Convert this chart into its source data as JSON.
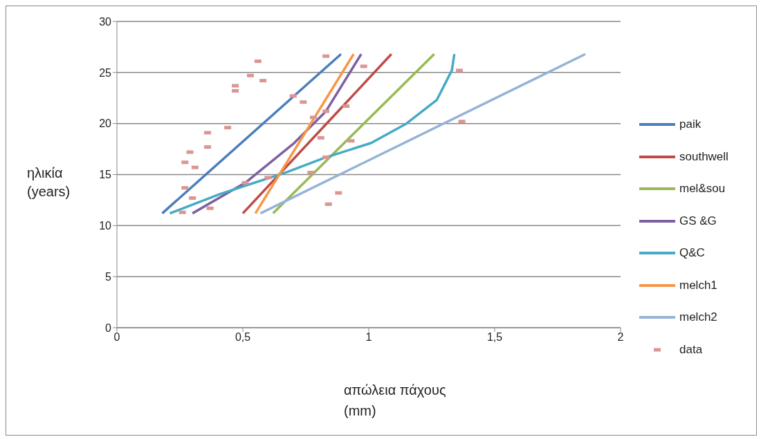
{
  "chart_data": {
    "type": "line",
    "xlabel": "απώλεια πάχους\n(mm)",
    "ylabel": "ηλικία\n(years)",
    "xlim": [
      0,
      2
    ],
    "xticks": [
      0,
      {
        "value": 0.5,
        "label": "0,5"
      },
      1,
      {
        "value": 1.5,
        "label": "1,5"
      },
      2
    ],
    "ylim": [
      0,
      30
    ],
    "yticks": [
      0,
      5,
      10,
      15,
      20,
      25,
      30
    ],
    "grid": "y",
    "legend": "right",
    "marker": "none",
    "line_style": "solid",
    "series": [
      {
        "name": "paik",
        "color": "#4a7ebb",
        "x": [
          0.18,
          0.89
        ],
        "values": [
          11.2,
          26.8
        ]
      },
      {
        "name": "southwell",
        "color": "#be4b48",
        "x": [
          0.5,
          1.09
        ],
        "values": [
          11.2,
          26.8
        ]
      },
      {
        "name": "mel&sou",
        "color": "#98b954",
        "x": [
          0.62,
          1.26
        ],
        "values": [
          11.2,
          26.8
        ]
      },
      {
        "name": "GS &G",
        "color": "#7d60a0",
        "x": [
          0.3,
          0.51,
          0.7,
          0.83,
          0.97
        ],
        "values": [
          11.2,
          14.2,
          18,
          21.2,
          26.8
        ]
      },
      {
        "name": "Q&C",
        "color": "#46aac5",
        "x": [
          0.21,
          0.41,
          0.67,
          0.82,
          1.01,
          1.15,
          1.27,
          1.33,
          1.34
        ],
        "values": [
          11.2,
          13.1,
          15.2,
          16.6,
          18.1,
          20,
          22.3,
          25.2,
          26.8
        ]
      },
      {
        "name": "melch1",
        "color": "#f79646",
        "x": [
          0.55,
          0.94
        ],
        "values": [
          11.2,
          26.8
        ]
      },
      {
        "name": "melch2",
        "color": "#95b3d7",
        "x": [
          0.57,
          1.86
        ],
        "values": [
          11.2,
          26.8
        ]
      },
      {
        "name": "data",
        "type": "scatter",
        "marker": "square",
        "color": "#d99694",
        "x": [
          0.26,
          0.3,
          0.27,
          0.6,
          0.51,
          0.37,
          0.27,
          0.29,
          0.31,
          0.36,
          0.36,
          0.44,
          0.47,
          0.47,
          0.53,
          0.58,
          0.56,
          0.7,
          0.74,
          0.78,
          0.83,
          0.81,
          0.83,
          0.77,
          0.83,
          0.84,
          0.88,
          0.98,
          0.91,
          0.93,
          1.36,
          1.37
        ],
        "values": [
          11.3,
          12.7,
          13.7,
          14.7,
          14.2,
          11.7,
          16.2,
          17.2,
          15.7,
          17.7,
          19.1,
          19.6,
          23.7,
          23.2,
          24.7,
          24.2,
          26.1,
          22.7,
          22.1,
          20.6,
          21.2,
          18.6,
          26.6,
          15.2,
          16.7,
          12.1,
          13.2,
          25.6,
          21.7,
          18.3,
          25.2,
          20.2
        ]
      }
    ]
  }
}
